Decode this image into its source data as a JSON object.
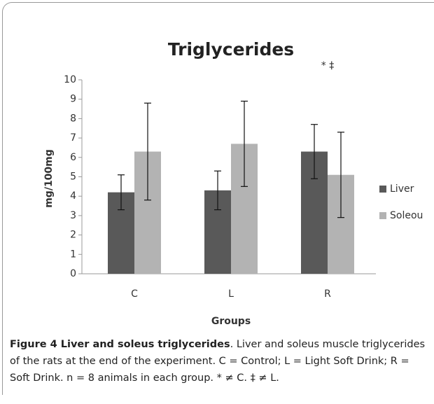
{
  "chart_data": {
    "type": "bar",
    "title": "Triglycerides",
    "x_label": "Groups",
    "y_label": "mg/100mg",
    "categories": [
      "C",
      "L",
      "R"
    ],
    "series": [
      {
        "name": "Liver",
        "color": "#595959",
        "values": [
          4.2,
          4.3,
          6.3
        ],
        "errors": [
          0.9,
          1.0,
          1.4
        ]
      },
      {
        "name": "Soleou",
        "color": "#b3b3b3",
        "values": [
          6.3,
          6.7,
          5.1
        ],
        "errors": [
          2.5,
          2.2,
          2.2
        ]
      }
    ],
    "annotation": "* ‡",
    "ylim": [
      0,
      10
    ],
    "yticks": [
      0,
      1,
      2,
      3,
      4,
      5,
      6,
      7,
      8,
      9,
      10
    ],
    "grid": false,
    "legend": "right"
  },
  "caption": {
    "title": "Figure 4 Liver and soleus triglycerides",
    "text": ". Liver and soleus muscle triglycerides of the rats at the end of the experiment. C = Control; L = Light Soft Drink; R = Soft Drink. n = 8 animals in each group. * ≠ C. ‡ ≠ L."
  }
}
